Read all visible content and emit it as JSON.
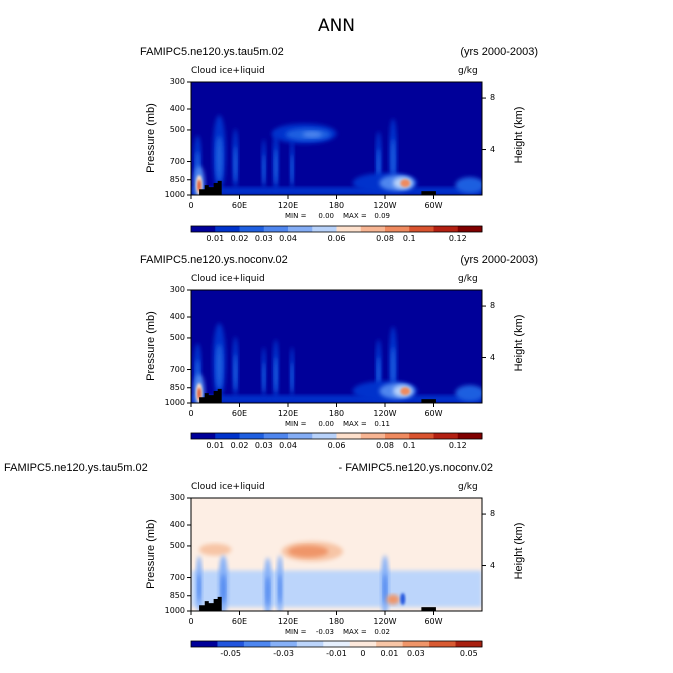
{
  "figure_title": "ANN",
  "colors": {
    "bg": "#000099",
    "seq_levels": [
      "#000099",
      "#0033cc",
      "#1f5fe0",
      "#4f86ee",
      "#84adf5",
      "#b8d2fa",
      "#fde0cc",
      "#f7b593",
      "#ef8a5f",
      "#d9532f",
      "#b32012",
      "#800000"
    ],
    "diff_levels": [
      "#000099",
      "#2255dd",
      "#4d86f0",
      "#86b0f7",
      "#bcd5fb",
      "#e6f0fe",
      "#fde9dc",
      "#f7c5a6",
      "#ef9569",
      "#d85a32",
      "#a82010"
    ],
    "land": "#000000"
  },
  "chart_data": [
    {
      "type": "heatmap",
      "panel": "top",
      "left_title": "FAMIPC5.ne120.ys.tau5m.02",
      "right_title": "(yrs 2000-2003)",
      "variable_label": "Cloud ice+liquid",
      "units": "g/kg",
      "ylabel": "Pressure  (mb)",
      "ylabel_right": "Height  (km)",
      "y_ticks": [
        "300",
        "400",
        "500",
        "700",
        "850",
        "1000"
      ],
      "y_right_ticks": [
        "8",
        "4"
      ],
      "x_ticks": [
        "0",
        "60E",
        "120E",
        "180",
        "120W",
        "60W"
      ],
      "xlim": [
        0,
        360
      ],
      "ylim": [
        1000,
        300
      ],
      "min_label": "MIN =",
      "min_value": "0.00",
      "max_label": "MAX =",
      "max_value": "0.09",
      "colorbar_labels": [
        "0.01",
        "0.02",
        "0.03",
        "0.04",
        "0.06",
        "0.08",
        "0.1",
        "0.12"
      ],
      "colorbar_levels": [
        0.01,
        0.015,
        0.02,
        0.025,
        0.03,
        0.035,
        0.04,
        0.05,
        0.06,
        0.07,
        0.08,
        0.1,
        0.12
      ],
      "features": [
        {
          "lon": 10,
          "p": 900,
          "value": 0.09,
          "note": "low cloud maximum near 10E"
        },
        {
          "lon": 260,
          "p": 880,
          "value": 0.08,
          "note": "stratocumulus maximum near 100W"
        },
        {
          "lon": 150,
          "p": 520,
          "value": 0.03,
          "note": "upper-level cloud over west Pacific"
        }
      ]
    },
    {
      "type": "heatmap",
      "panel": "middle",
      "left_title": "FAMIPC5.ne120.ys.noconv.02",
      "right_title": "(yrs 2000-2003)",
      "variable_label": "Cloud ice+liquid",
      "units": "g/kg",
      "ylabel": "Pressure  (mb)",
      "ylabel_right": "Height  (km)",
      "y_ticks": [
        "300",
        "400",
        "500",
        "700",
        "850",
        "1000"
      ],
      "y_right_ticks": [
        "8",
        "4"
      ],
      "x_ticks": [
        "0",
        "60E",
        "120E",
        "180",
        "120W",
        "60W"
      ],
      "xlim": [
        0,
        360
      ],
      "ylim": [
        1000,
        300
      ],
      "min_label": "MIN =",
      "min_value": "0.00",
      "max_label": "MAX =",
      "max_value": "0.11",
      "colorbar_labels": [
        "0.01",
        "0.02",
        "0.03",
        "0.04",
        "0.06",
        "0.08",
        "0.1",
        "0.12"
      ],
      "colorbar_levels": [
        0.01,
        0.015,
        0.02,
        0.025,
        0.03,
        0.035,
        0.04,
        0.05,
        0.06,
        0.07,
        0.08,
        0.1,
        0.12
      ],
      "features": [
        {
          "lon": 10,
          "p": 880,
          "value": 0.09,
          "note": "low cloud maximum near 10E"
        },
        {
          "lon": 265,
          "p": 880,
          "value": 0.1,
          "note": "stratocumulus maximum near 95W"
        },
        {
          "lon": 35,
          "p": 600,
          "value": 0.05,
          "note": "convective tower near 35E"
        }
      ]
    },
    {
      "type": "heatmap",
      "panel": "bottom",
      "left_title": "FAMIPC5.ne120.ys.tau5m.02",
      "right_title": "- FAMIPC5.ne120.ys.noconv.02",
      "variable_label": "Cloud ice+liquid",
      "units": "g/kg",
      "ylabel": "Pressure  (mb)",
      "ylabel_right": "Height  (km)",
      "y_ticks": [
        "300",
        "400",
        "500",
        "700",
        "850",
        "1000"
      ],
      "y_right_ticks": [
        "8",
        "4"
      ],
      "x_ticks": [
        "0",
        "60E",
        "120E",
        "180",
        "120W",
        "60W"
      ],
      "xlim": [
        0,
        360
      ],
      "ylim": [
        1000,
        300
      ],
      "min_label": "MIN =",
      "min_value": "-0.03",
      "max_label": "MAX =",
      "max_value": "0.02",
      "colorbar_labels": [
        "-0.05",
        "-0.03",
        "-0.01",
        "0",
        "0.01",
        "0.03",
        "0.05"
      ],
      "colorbar_levels": [
        -0.06,
        -0.05,
        -0.04,
        -0.03,
        -0.02,
        -0.01,
        0,
        0.01,
        0.02,
        0.03,
        0.04,
        0.05,
        0.06
      ],
      "features": [
        {
          "lon": 150,
          "p": 530,
          "value": 0.02,
          "note": "positive difference upper troposphere"
        },
        {
          "lon": 250,
          "p": 880,
          "value": 0.02,
          "note": "positive difference stratocumulus"
        },
        {
          "lon": 40,
          "p": 750,
          "value": -0.02,
          "note": "negative difference near 40E"
        }
      ]
    }
  ]
}
